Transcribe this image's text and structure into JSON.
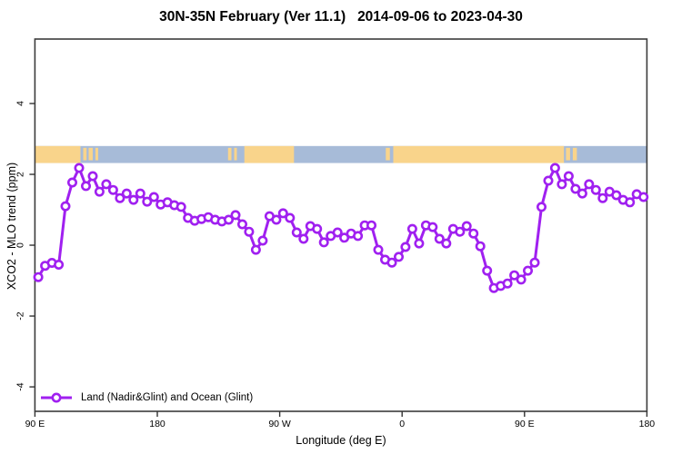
{
  "title": "30N-35N February (Ver 11.1)   2014-09-06 to 2023-04-30",
  "chart_data": {
    "type": "line",
    "title": "30N-35N February (Ver 11.1)   2014-09-06 to 2023-04-30",
    "xlabel": "Longitude (deg E)",
    "ylabel": "XCO2 - MLO trend (ppm)",
    "x_axis": {
      "span_deg": 450,
      "xlim_deg": [
        0,
        450
      ],
      "ticks": [
        {
          "deg": 0,
          "label": "90 E"
        },
        {
          "deg": 90,
          "label": "180"
        },
        {
          "deg": 180,
          "label": "90 W"
        },
        {
          "deg": 270,
          "label": "0"
        },
        {
          "deg": 360,
          "label": "90 E"
        },
        {
          "deg": 450,
          "label": "180"
        }
      ]
    },
    "y_axis": {
      "ylim": [
        -4.69,
        5.82
      ],
      "ticks": [
        {
          "value": 4,
          "label": "4"
        },
        {
          "value": 2,
          "label": "2"
        },
        {
          "value": 0,
          "label": "0"
        },
        {
          "value": -2,
          "label": "-2"
        },
        {
          "value": -4,
          "label": "-4"
        }
      ]
    },
    "grid": "off",
    "legend": {
      "label": "Land (Nadir&Glint) and Ocean (Glint)",
      "position": "bottom-left"
    },
    "series": [
      {
        "name": "Land (Nadir&Glint) and Ocean (Glint)",
        "color": "#A020F0",
        "marker": "open-circle",
        "x_start_deg": 2.5,
        "x_step_deg": 5,
        "values": [
          -0.9,
          -0.58,
          -0.5,
          -0.55,
          1.1,
          1.77,
          2.18,
          1.67,
          1.95,
          1.51,
          1.72,
          1.56,
          1.33,
          1.46,
          1.28,
          1.46,
          1.23,
          1.36,
          1.15,
          1.21,
          1.13,
          1.08,
          0.77,
          0.69,
          0.74,
          0.79,
          0.72,
          0.67,
          0.72,
          0.85,
          0.59,
          0.38,
          -0.13,
          0.13,
          0.82,
          0.72,
          0.9,
          0.77,
          0.36,
          0.18,
          0.54,
          0.46,
          0.08,
          0.26,
          0.36,
          0.21,
          0.33,
          0.26,
          0.56,
          0.56,
          -0.13,
          -0.41,
          -0.49,
          -0.33,
          -0.05,
          0.46,
          0.05,
          0.56,
          0.51,
          0.18,
          0.05,
          0.46,
          0.38,
          0.54,
          0.33,
          -0.03,
          -0.72,
          -1.21,
          -1.15,
          -1.08,
          -0.85,
          -0.97,
          -0.72,
          -0.49,
          1.08,
          1.82,
          2.18,
          1.72,
          1.95,
          1.59,
          1.46,
          1.72,
          1.56,
          1.33,
          1.51,
          1.41,
          1.28,
          1.21,
          1.44,
          1.36
        ]
      }
    ],
    "map_strip": {
      "description": "land-ocean mask band",
      "ocean_color": "#A7BBD8",
      "land_color": "#F9D48B",
      "value_band": [
        2.32,
        2.8
      ],
      "ocean_extent_deg": [
        0,
        450
      ],
      "land_segments_deg": [
        [
          0,
          33.5
        ],
        [
          154,
          190.5
        ],
        [
          263.5,
          389
        ]
      ],
      "island_patches_deg": [
        [
          35.5,
          38
        ],
        [
          39.5,
          42.5
        ],
        [
          44.5,
          46.5
        ],
        [
          142,
          144.5
        ],
        [
          146.5,
          148.5
        ],
        [
          258,
          261
        ],
        [
          390.5,
          393.5
        ],
        [
          395.5,
          398.5
        ]
      ]
    }
  }
}
